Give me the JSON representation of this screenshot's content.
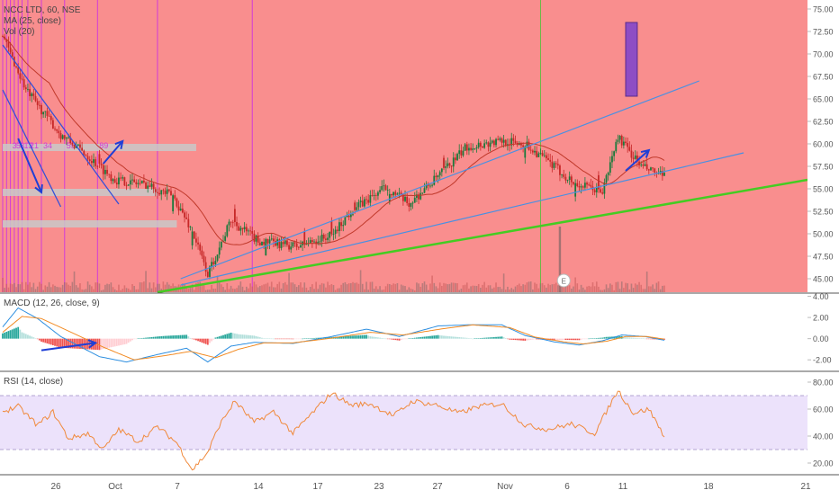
{
  "colors": {
    "price_background": "#f98e8e",
    "bull_candle": "#1b7a3c",
    "bear_candle": "#c62828",
    "trendline": "#4a90e2",
    "support_line": "#44cc22",
    "arrow": "#1f3fd6",
    "fib_lines": "#d23bd8",
    "target_box": "#8e4dc4",
    "ma_line": "#c0392b",
    "macd_line": "#2e8fe0",
    "signal_line": "#f28b24",
    "rsi_line": "#f08a3c",
    "rsi_band": "#ece2fb",
    "text": "#555555"
  },
  "chart_data": [
    {
      "id": "price",
      "type": "candlestick",
      "legend": [
        "NCC LTD, 60, NSE",
        "MA (25, close)",
        "Vol (20)"
      ],
      "ylim": [
        43.5,
        76
      ],
      "yticks": [
        "45.00",
        "47.50",
        "50.00",
        "52.50",
        "55.00",
        "57.50",
        "60.00",
        "62.50",
        "65.00",
        "67.50",
        "70.00",
        "72.50",
        "75.00"
      ],
      "xticks": [
        "26",
        "Oct",
        "7",
        "14",
        "17",
        "23",
        "27",
        "Nov",
        "6",
        "11",
        "18",
        "21"
      ],
      "fib_labels": [
        "3",
        "5",
        "8",
        "13",
        "21",
        "34",
        "55",
        "89"
      ],
      "earnings_marker": "E",
      "anchors": [
        [
          0,
          72
        ],
        [
          12,
          66
        ],
        [
          30,
          61
        ],
        [
          42,
          59
        ],
        [
          58,
          56
        ],
        [
          74,
          55.5
        ],
        [
          88,
          54.2
        ],
        [
          98,
          50.3
        ],
        [
          106,
          45.5
        ],
        [
          118,
          51.5
        ],
        [
          132,
          49.2
        ],
        [
          152,
          48.6
        ],
        [
          170,
          49.8
        ],
        [
          180,
          52.5
        ],
        [
          198,
          55.2
        ],
        [
          210,
          53.3
        ],
        [
          228,
          57
        ],
        [
          240,
          59.7
        ],
        [
          258,
          60.3
        ],
        [
          270,
          60
        ],
        [
          282,
          58
        ],
        [
          296,
          55.5
        ],
        [
          310,
          54.7
        ],
        [
          318,
          60.8
        ],
        [
          330,
          57.5
        ],
        [
          342,
          56.3
        ]
      ],
      "gap_bars": [
        50,
        88,
        98,
        120,
        136,
        156,
        170,
        182,
        200,
        228,
        270,
        296,
        308
      ],
      "gap_sizes": [
        1.4,
        -1.8,
        -2.1,
        1.5,
        -1.2,
        1.1,
        1.2,
        1.3,
        -1.3,
        1.2,
        -1.2,
        -1.4,
        1.3
      ],
      "upper_trendline": [
        [
          92,
          45
        ],
        [
          360,
          67
        ]
      ],
      "middle_trendline": [
        [
          92,
          44.3
        ],
        [
          383,
          59
        ]
      ],
      "support_line": [
        [
          80,
          43.5
        ],
        [
          420,
          56
        ]
      ],
      "target_box": [
        [
          322,
          73.5
        ],
        [
          328,
          65.3
        ]
      ],
      "arrows": [
        [
          [
            8,
            60.6
          ],
          [
            20,
            54.6
          ]
        ],
        [
          [
            52,
            57.8
          ],
          [
            62,
            60.3
          ]
        ],
        [
          [
            322,
            57
          ],
          [
            334,
            59.3
          ]
        ]
      ],
      "fib_bar_indices": [
        0,
        2,
        4,
        6,
        8,
        10,
        13,
        20,
        32,
        49,
        80,
        129
      ]
    },
    {
      "id": "macd",
      "type": "line+histogram",
      "legend": "MACD (12, 26, close, 9)",
      "ylim": [
        -3,
        4.3
      ],
      "yticks": [
        "4.00",
        "2.00",
        "0.00",
        "-2.00"
      ],
      "macd_anchors": [
        [
          0,
          1.1
        ],
        [
          8,
          2.9
        ],
        [
          18,
          1.9
        ],
        [
          30,
          0.2
        ],
        [
          50,
          -1.7
        ],
        [
          64,
          -2.2
        ],
        [
          80,
          -1.5
        ],
        [
          95,
          -0.9
        ],
        [
          106,
          -2.2
        ],
        [
          118,
          -0.7
        ],
        [
          130,
          -0.35
        ],
        [
          150,
          -0.45
        ],
        [
          170,
          0.2
        ],
        [
          188,
          0.9
        ],
        [
          205,
          0.2
        ],
        [
          225,
          1.2
        ],
        [
          240,
          1.3
        ],
        [
          258,
          1.3
        ],
        [
          270,
          0.3
        ],
        [
          285,
          -0.3
        ],
        [
          298,
          -0.6
        ],
        [
          310,
          -0.2
        ],
        [
          320,
          0.35
        ],
        [
          332,
          0.2
        ],
        [
          342,
          -0.15
        ]
      ],
      "signal_anchors": [
        [
          0,
          0.6
        ],
        [
          10,
          2.1
        ],
        [
          20,
          1.9
        ],
        [
          33,
          0.8
        ],
        [
          52,
          -0.8
        ],
        [
          68,
          -2.0
        ],
        [
          84,
          -1.6
        ],
        [
          97,
          -1.2
        ],
        [
          110,
          -1.8
        ],
        [
          122,
          -1.0
        ],
        [
          135,
          -0.4
        ],
        [
          150,
          -0.4
        ],
        [
          170,
          0.05
        ],
        [
          190,
          0.6
        ],
        [
          207,
          0.35
        ],
        [
          228,
          0.95
        ],
        [
          243,
          1.3
        ],
        [
          262,
          1.05
        ],
        [
          275,
          0.15
        ],
        [
          290,
          -0.3
        ],
        [
          300,
          -0.5
        ],
        [
          312,
          -0.25
        ],
        [
          322,
          0.2
        ],
        [
          333,
          0.2
        ],
        [
          342,
          -0.05
        ]
      ],
      "arrow": [
        [
          20,
          -1.1
        ],
        [
          48,
          -0.4
        ]
      ]
    },
    {
      "id": "rsi",
      "type": "line",
      "legend": "RSI (14, close)",
      "ylim": [
        12,
        88
      ],
      "yticks": [
        "80.00",
        "60.00",
        "40.00",
        "20.00"
      ],
      "band": [
        30,
        70
      ],
      "anchors": [
        [
          0,
          58
        ],
        [
          8,
          62
        ],
        [
          18,
          48
        ],
        [
          26,
          58
        ],
        [
          34,
          38
        ],
        [
          44,
          42
        ],
        [
          52,
          30
        ],
        [
          60,
          45
        ],
        [
          70,
          36
        ],
        [
          80,
          47
        ],
        [
          90,
          35
        ],
        [
          98,
          15
        ],
        [
          106,
          28
        ],
        [
          112,
          48
        ],
        [
          120,
          66
        ],
        [
          130,
          50
        ],
        [
          140,
          58
        ],
        [
          150,
          42
        ],
        [
          162,
          60
        ],
        [
          170,
          72
        ],
        [
          180,
          63
        ],
        [
          190,
          64
        ],
        [
          202,
          55
        ],
        [
          212,
          66
        ],
        [
          224,
          63
        ],
        [
          236,
          57
        ],
        [
          246,
          62
        ],
        [
          258,
          64
        ],
        [
          270,
          48
        ],
        [
          282,
          45
        ],
        [
          294,
          49
        ],
        [
          306,
          42
        ],
        [
          318,
          74
        ],
        [
          326,
          57
        ],
        [
          334,
          60
        ],
        [
          342,
          40
        ]
      ]
    }
  ]
}
